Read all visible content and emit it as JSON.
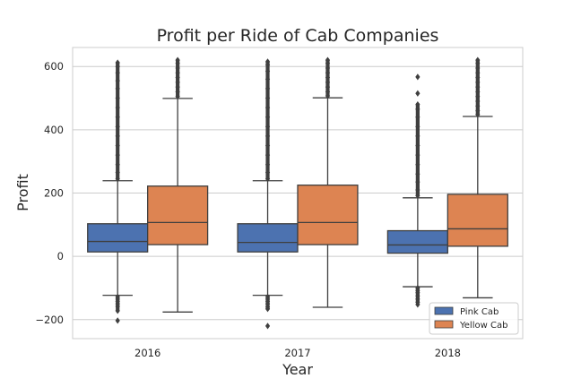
{
  "chart_data": {
    "type": "box",
    "title": "Profit per Ride of Cab Companies",
    "xlabel": "Year",
    "ylabel": "Profit",
    "categories": [
      "2016",
      "2017",
      "2018"
    ],
    "ylim": [
      -260,
      660
    ],
    "yticks": [
      -200,
      0,
      200,
      400,
      600
    ],
    "yticklabels": [
      "−200",
      "0",
      "200",
      "400",
      "600"
    ],
    "grid": true,
    "legend_position": "lower-right",
    "colors": {
      "Pink Cab": "#4c72b0",
      "Yellow Cab": "#dd8452",
      "line": "#3f3f3f",
      "grid": "#cccccc",
      "frame": "#cccccc"
    },
    "series": [
      {
        "name": "Pink Cab",
        "boxes": [
          {
            "whisker_low": -123,
            "q1": 14,
            "median": 47,
            "q3": 103,
            "whisker_high": 239,
            "outliers_low": [
              -128,
              -135,
              -142,
              -150,
              -158,
              -172,
              -203
            ],
            "outliers_high": [
              245,
              265,
              290,
              320,
              350,
              380,
              410,
              440,
              470,
              500,
              530,
              555,
              580,
              600,
              612
            ]
          },
          {
            "whisker_low": -123,
            "q1": 14,
            "median": 44,
            "q3": 103,
            "whisker_high": 239,
            "outliers_low": [
              -128,
              -135,
              -142,
              -150,
              -160,
              -166,
              -220
            ],
            "outliers_high": [
              245,
              265,
              290,
              320,
              350,
              380,
              410,
              440,
              470,
              500,
              530,
              560,
              585,
              605,
              615
            ]
          },
          {
            "whisker_low": -96,
            "q1": 10,
            "median": 36,
            "q3": 81,
            "whisker_high": 185,
            "outliers_low": [
              -100,
              -108,
              -115,
              -125,
              -135,
              -145,
              -152
            ],
            "outliers_high": [
              192,
              210,
              235,
              260,
              290,
              320,
              350,
              380,
              410,
              440,
              465,
              480,
              515,
              567
            ]
          }
        ]
      },
      {
        "name": "Yellow Cab",
        "boxes": [
          {
            "whisker_low": -176,
            "q1": 37,
            "median": 107,
            "q3": 222,
            "whisker_high": 499,
            "outliers_low": [],
            "outliers_high": [
              505,
              520,
              535,
              550,
              565,
              580,
              595,
              610,
              620
            ]
          },
          {
            "whisker_low": -161,
            "q1": 37,
            "median": 107,
            "q3": 225,
            "whisker_high": 501,
            "outliers_low": [],
            "outliers_high": [
              507,
              520,
              535,
              550,
              565,
              580,
              595,
              610,
              620
            ]
          },
          {
            "whisker_low": -131,
            "q1": 32,
            "median": 87,
            "q3": 196,
            "whisker_high": 442,
            "outliers_low": [],
            "outliers_high": [
              448,
              460,
              475,
              490,
              505,
              520,
              535,
              550,
              565,
              580,
              595,
              610,
              620
            ]
          }
        ]
      }
    ]
  }
}
